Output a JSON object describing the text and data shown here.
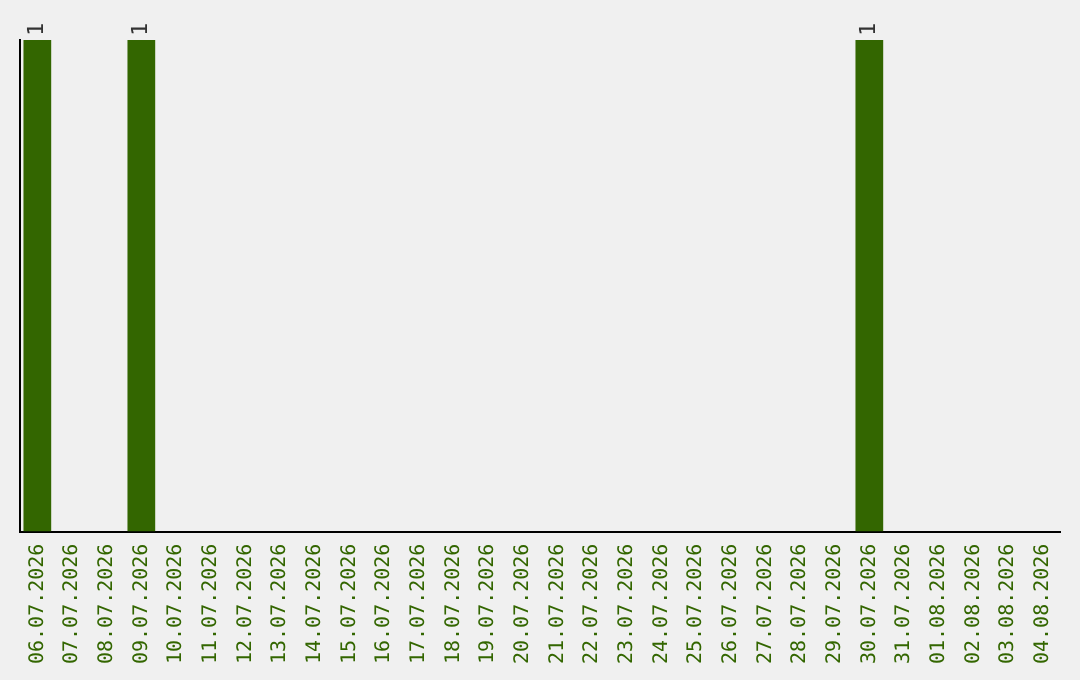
{
  "chart_data": {
    "type": "bar",
    "categories": [
      "06.07.2026",
      "07.07.2026",
      "08.07.2026",
      "09.07.2026",
      "10.07.2026",
      "11.07.2026",
      "12.07.2026",
      "13.07.2026",
      "14.07.2026",
      "15.07.2026",
      "16.07.2026",
      "17.07.2026",
      "18.07.2026",
      "19.07.2026",
      "20.07.2026",
      "21.07.2026",
      "22.07.2026",
      "23.07.2026",
      "24.07.2026",
      "25.07.2026",
      "26.07.2026",
      "27.07.2026",
      "28.07.2026",
      "29.07.2026",
      "30.07.2026",
      "31.07.2026",
      "01.08.2026",
      "02.08.2026",
      "03.08.2026",
      "04.08.2026"
    ],
    "values": [
      1,
      0,
      0,
      1,
      0,
      0,
      0,
      0,
      0,
      0,
      0,
      0,
      0,
      0,
      0,
      0,
      0,
      0,
      0,
      0,
      0,
      0,
      0,
      0,
      1,
      0,
      0,
      0,
      0,
      0
    ],
    "value_labels": [
      "1",
      null,
      null,
      "1",
      null,
      null,
      null,
      null,
      null,
      null,
      null,
      null,
      null,
      null,
      null,
      null,
      null,
      null,
      null,
      null,
      null,
      null,
      null,
      null,
      "1",
      null,
      null,
      null,
      null,
      null
    ],
    "color": "#336600",
    "grid": false,
    "legend": false,
    "tick_labels": "x"
  }
}
